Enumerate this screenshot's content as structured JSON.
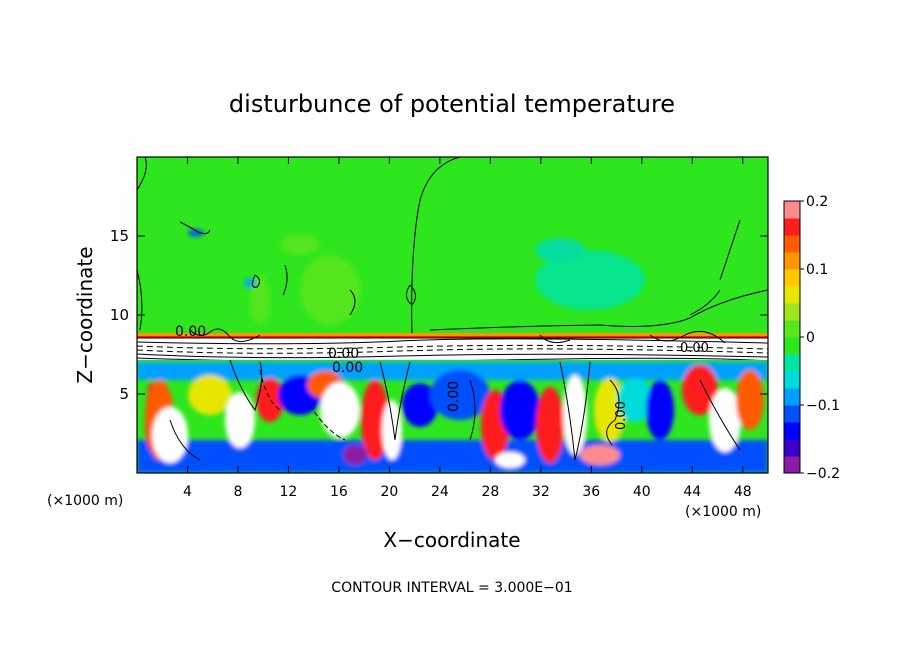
{
  "chart_data": {
    "type": "heatmap",
    "title": "disturbunce of potential temperature",
    "xlabel": "X−coordinate",
    "ylabel": "Z−coordinate",
    "x_unit": "(×1000 m)",
    "x_unit_right": "(×1000 m)",
    "xlim": [
      0,
      50
    ],
    "ylim": [
      0,
      20
    ],
    "x_ticks": [
      4,
      8,
      12,
      16,
      20,
      24,
      28,
      32,
      36,
      40,
      44,
      48
    ],
    "y_ticks": [
      5,
      10,
      15
    ],
    "contour_interval_text": "CONTOUR INTERVAL = 3.000E−01",
    "contour_labels": [
      "0.00",
      "0.00",
      "0.00",
      "0.00",
      "0.00",
      "0.00"
    ],
    "colorbar": {
      "range": [
        -0.2,
        0.2
      ],
      "tick_labels": [
        {
          "value": 0.2,
          "text": "0.2"
        },
        {
          "value": 0.1,
          "text": "0.1"
        },
        {
          "value": 0,
          "text": "0"
        },
        {
          "value": -0.1,
          "text": "−0.1"
        },
        {
          "value": -0.2,
          "text": "−0.2"
        }
      ],
      "colors": [
        "#8b1ca8",
        "#3a00c8",
        "#0000ff",
        "#0050ff",
        "#00a0ff",
        "#00dcdc",
        "#00e6a0",
        "#2ee61e",
        "#5ae61e",
        "#a0e61e",
        "#e6e600",
        "#ffc800",
        "#ff9600",
        "#ff5a00",
        "#ff1e1e",
        "#ff8c8c"
      ]
    },
    "regions": {
      "upper_layer": {
        "z_range": [
          8.7,
          20
        ],
        "value_approx": 0.0
      },
      "stable_interface": {
        "z_range": [
          7.5,
          8.7
        ],
        "value_approx": 0.0
      },
      "lower_layer": {
        "z_range": [
          0,
          7.5
        ],
        "value_range": [
          -0.2,
          0.2
        ]
      }
    }
  }
}
